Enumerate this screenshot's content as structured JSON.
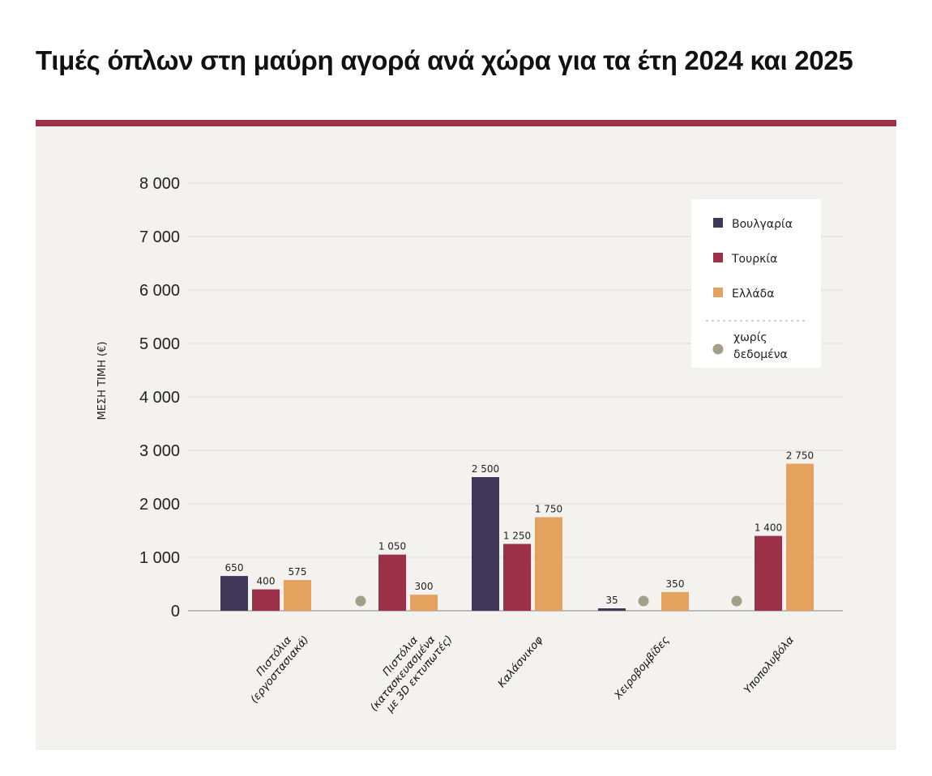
{
  "title": "Τιμές όπλων στη μαύρη αγορά ανά χώρα για τα έτη 2024 και 2025",
  "chart_data": {
    "type": "bar",
    "title": "Τιμές όπλων στη μαύρη αγορά ανά χώρα για τα έτη 2024 και 2025",
    "ylabel": "ΜΕΣΗ ΤΙΜΗ (€)",
    "xlabel": "",
    "ylim": [
      0,
      8000
    ],
    "yticks": [
      0,
      1000,
      2000,
      3000,
      4000,
      5000,
      6000,
      7000,
      8000
    ],
    "ytick_labels": [
      "0",
      "1 000",
      "2 000",
      "3 000",
      "4 000",
      "5 000",
      "6 000",
      "7 000",
      "8 000"
    ],
    "grid": true,
    "legend_position": "top-right",
    "categories": [
      [
        "Πιστόλια",
        "(εργοστασιακά)"
      ],
      [
        "Πιστόλια",
        "(κατασκευασμένα",
        "με 3D εκτυπωτές)"
      ],
      [
        "Καλάσνικοφ"
      ],
      [
        "Χειροβομβίδες"
      ],
      [
        "Υποπολυβόλα"
      ]
    ],
    "series": [
      {
        "name": "Βουλγαρία",
        "color": "#3f3858",
        "values": [
          650,
          null,
          2500,
          35,
          null
        ],
        "labels": [
          "650",
          "",
          "2 500",
          "35",
          ""
        ]
      },
      {
        "name": "Τουρκία",
        "color": "#9b3048",
        "values": [
          400,
          1050,
          1250,
          null,
          1400
        ],
        "labels": [
          "400",
          "1 050",
          "1 250",
          "",
          "1 400"
        ]
      },
      {
        "name": "Ελλάδα",
        "color": "#e3a35f",
        "values": [
          575,
          300,
          1750,
          350,
          2750
        ],
        "labels": [
          "575",
          "300",
          "1 750",
          "350",
          "2 750"
        ]
      }
    ],
    "no_data": {
      "label": "χωρίς δεδομένα",
      "label_lines": [
        "χωρίς",
        "δεδομένα"
      ],
      "color": "#a49f88"
    }
  }
}
